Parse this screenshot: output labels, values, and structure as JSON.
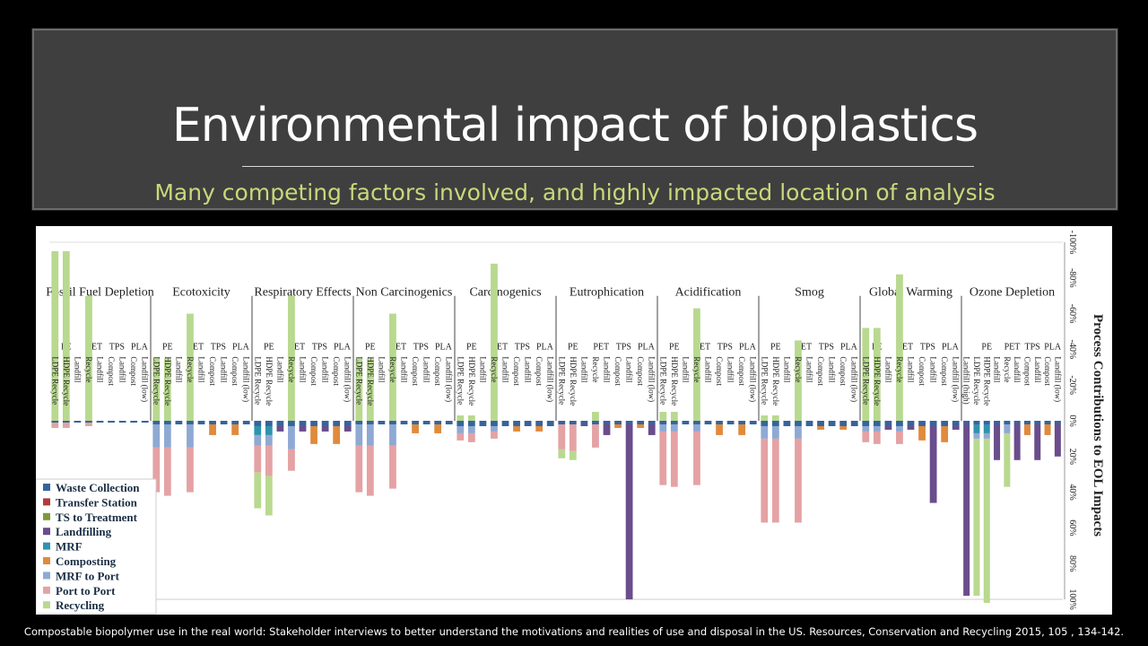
{
  "slide": {
    "title": "Environmental impact of  bioplastics",
    "subtitle": "Many competing factors involved, and highly impacted location of analysis",
    "citation": "Compostable biopolymer use in the real world: Stakeholder interviews to better understand the motivations and realities of use and disposal in the US. Resources, Conservation and Recycling 2015, 105 , 134-142."
  },
  "colors": {
    "Waste Collection": "#36649a",
    "Transfer Station": "#b23a3a",
    "TS to Treatment": "#7d9a3b",
    "Landfilling": "#6a4d8c",
    "MRF": "#2f93ad",
    "Composting": "#e08a3c",
    "MRF to Port": "#8ea9d3",
    "Port to Port": "#e4a2a4",
    "Recycling": "#b8d98f"
  },
  "chart_data": {
    "type": "bar",
    "stacked": true,
    "orientation": "vertical",
    "ylabel": "Process Contributions to EOL Impacts",
    "ylim": [
      -100,
      100
    ],
    "yticks": [
      "-100%",
      "-80%",
      "-60%",
      "-40%",
      "-20%",
      "0%",
      "20%",
      "40%",
      "60%",
      "80%",
      "100%"
    ],
    "legend": [
      "Waste Collection",
      "Transfer Station",
      "TS to Treatment",
      "Landfilling",
      "MRF",
      "Composting",
      "MRF to Port",
      "Port to Port",
      "Recycling"
    ],
    "legend_position": "bottom-left",
    "material_labels": [
      "PE",
      "PET",
      "TPS",
      "PLA"
    ],
    "categories_template": [
      {
        "label": "LDPE Recycle",
        "material": "PE"
      },
      {
        "label": "HDPE Recycle",
        "material": "PE"
      },
      {
        "label": "Landfill",
        "material": "PE"
      },
      {
        "label": "Recycle",
        "material": "PET"
      },
      {
        "label": "Landfill",
        "material": "PET"
      },
      {
        "label": "Compost",
        "material": "TPS"
      },
      {
        "label": "Landfill",
        "material": "TPS"
      },
      {
        "label": "Compost",
        "material": "PLA"
      },
      {
        "label": "Landfill (low)",
        "material": "PLA"
      }
    ],
    "groups": [
      {
        "name": "Fossil Fuel Depletion",
        "bars": [
          {
            "Recycling": -95,
            "Port to Port": 3,
            "Waste Collection": 1
          },
          {
            "Recycling": -95,
            "Port to Port": 3,
            "Waste Collection": 1
          },
          {
            "Waste Collection": 1
          },
          {
            "Recycling": -70,
            "Port to Port": 2,
            "Waste Collection": 1
          },
          {
            "Waste Collection": 1
          },
          {
            "Waste Collection": 1
          },
          {
            "Waste Collection": 1
          },
          {
            "Waste Collection": 1
          },
          {
            "Waste Collection": 1
          }
        ]
      },
      {
        "name": "Ecotoxicity",
        "bars": [
          {
            "Waste Collection": 2,
            "MRF to Port": 13,
            "Port to Port": 25,
            "Recycling": -35
          },
          {
            "Waste Collection": 2,
            "MRF to Port": 13,
            "Port to Port": 27,
            "Recycling": -35
          },
          {
            "Waste Collection": 2
          },
          {
            "Waste Collection": 2,
            "MRF to Port": 13,
            "Port to Port": 25,
            "Recycling": -60
          },
          {
            "Waste Collection": 2
          },
          {
            "Waste Collection": 2,
            "Composting": 6
          },
          {
            "Waste Collection": 2
          },
          {
            "Waste Collection": 2,
            "Composting": 6
          },
          {
            "Waste Collection": 2
          }
        ]
      },
      {
        "name": "Respiratory Effects",
        "bars": [
          {
            "Waste Collection": 3,
            "MRF": 5,
            "MRF to Port": 6,
            "Port to Port": 15,
            "Recycling": 20
          },
          {
            "Waste Collection": 3,
            "MRF": 5,
            "MRF to Port": 6,
            "Port to Port": 17,
            "Recycling": 22
          },
          {
            "Waste Collection": 3,
            "Landfilling": 3
          },
          {
            "Waste Collection": 3,
            "MRF to Port": 13,
            "Port to Port": 12,
            "Recycling": -70
          },
          {
            "Waste Collection": 3,
            "Landfilling": 3
          },
          {
            "Waste Collection": 3,
            "Composting": 10
          },
          {
            "Waste Collection": 3,
            "Landfilling": 3
          },
          {
            "Waste Collection": 3,
            "Composting": 10
          },
          {
            "Waste Collection": 3,
            "Landfilling": 3
          }
        ]
      },
      {
        "name": "Non Carcinogenics",
        "bars": [
          {
            "Waste Collection": 2,
            "MRF to Port": 12,
            "Port to Port": 26,
            "Recycling": -35
          },
          {
            "Waste Collection": 2,
            "MRF to Port": 12,
            "Port to Port": 28,
            "Recycling": -35
          },
          {
            "Waste Collection": 2
          },
          {
            "Waste Collection": 2,
            "MRF to Port": 12,
            "Port to Port": 24,
            "Recycling": -60
          },
          {
            "Waste Collection": 2
          },
          {
            "Waste Collection": 2,
            "Composting": 5
          },
          {
            "Waste Collection": 2
          },
          {
            "Waste Collection": 2,
            "Composting": 5
          },
          {
            "Waste Collection": 2
          }
        ]
      },
      {
        "name": "Carcinogenics",
        "bars": [
          {
            "Waste Collection": 3,
            "MRF to Port": 4,
            "Port to Port": 4,
            "Recycling": -3
          },
          {
            "Waste Collection": 3,
            "MRF to Port": 4,
            "Port to Port": 5,
            "Recycling": -3
          },
          {
            "Waste Collection": 3
          },
          {
            "Waste Collection": 3,
            "MRF to Port": 3,
            "Port to Port": 4,
            "Recycling": -88
          },
          {
            "Waste Collection": 3
          },
          {
            "Waste Collection": 3,
            "Composting": 3
          },
          {
            "Waste Collection": 3
          },
          {
            "Waste Collection": 3,
            "Composting": 3
          },
          {
            "Waste Collection": 3
          }
        ]
      },
      {
        "name": "Eutrophication",
        "bars": [
          {
            "Waste Collection": 2,
            "Port to Port": 14,
            "Recycling": 5
          },
          {
            "Waste Collection": 2,
            "Port to Port": 15,
            "Recycling": 5
          },
          {
            "Waste Collection": 2,
            "Landfilling": 1
          },
          {
            "Waste Collection": 2,
            "Port to Port": 13,
            "Recycling": -5
          },
          {
            "Waste Collection": 2,
            "Landfilling": 6
          },
          {
            "Waste Collection": 2,
            "Composting": 2
          },
          {
            "Waste Collection": 2,
            "Landfilling": 98
          },
          {
            "Waste Collection": 2,
            "Composting": 2
          },
          {
            "Waste Collection": 2,
            "Landfilling": 6
          }
        ]
      },
      {
        "name": "Acidification",
        "bars": [
          {
            "Waste Collection": 2,
            "MRF to Port": 4,
            "Port to Port": 30,
            "Recycling": -5
          },
          {
            "Waste Collection": 2,
            "MRF to Port": 4,
            "Port to Port": 31,
            "Recycling": -5
          },
          {
            "Waste Collection": 2
          },
          {
            "Waste Collection": 2,
            "MRF to Port": 4,
            "Port to Port": 30,
            "Recycling": -63
          },
          {
            "Waste Collection": 2
          },
          {
            "Waste Collection": 2,
            "Composting": 6
          },
          {
            "Waste Collection": 2
          },
          {
            "Waste Collection": 2,
            "Composting": 6
          },
          {
            "Waste Collection": 2
          }
        ]
      },
      {
        "name": "Smog",
        "bars": [
          {
            "Waste Collection": 3,
            "MRF to Port": 7,
            "Port to Port": 47,
            "Recycling": -3
          },
          {
            "Waste Collection": 3,
            "MRF to Port": 7,
            "Port to Port": 47,
            "Recycling": -3
          },
          {
            "Waste Collection": 3
          },
          {
            "Waste Collection": 3,
            "MRF to Port": 7,
            "Port to Port": 47,
            "Recycling": -45
          },
          {
            "Waste Collection": 3
          },
          {
            "Waste Collection": 3,
            "Composting": 2
          },
          {
            "Waste Collection": 3
          },
          {
            "Waste Collection": 3,
            "Composting": 2
          },
          {
            "Waste Collection": 3
          }
        ]
      },
      {
        "name": "Global Warming",
        "bars": [
          {
            "Waste Collection": 3,
            "MRF to Port": 3,
            "Port to Port": 6,
            "Recycling": -52
          },
          {
            "Waste Collection": 3,
            "MRF to Port": 3,
            "Port to Port": 7,
            "Recycling": -52
          },
          {
            "Waste Collection": 3,
            "Landfilling": 2
          },
          {
            "Waste Collection": 3,
            "MRF to Port": 3,
            "Port to Port": 7,
            "Recycling": -82
          },
          {
            "Waste Collection": 3,
            "Landfilling": 2
          },
          {
            "Waste Collection": 3,
            "Composting": 8
          },
          {
            "Waste Collection": 3,
            "Landfilling": 43
          },
          {
            "Waste Collection": 3,
            "Composting": 9
          },
          {
            "Waste Collection": 3,
            "Landfilling": 2
          }
        ]
      },
      {
        "name": "Ozone Depletion",
        "extra_label": "Landfill (high)",
        "bars": [
          {
            "Waste Collection": 2,
            "Landfilling": 96
          },
          {
            "Waste Collection": 2,
            "MRF": 5,
            "MRF to Port": 3,
            "Recycling": 88
          },
          {
            "Waste Collection": 2,
            "MRF": 5,
            "MRF to Port": 3,
            "Recycling": 92
          },
          {
            "Waste Collection": 2,
            "Landfilling": 20
          },
          {
            "Waste Collection": 2,
            "MRF to Port": 5,
            "Recycling": 30
          },
          {
            "Waste Collection": 2,
            "Landfilling": 20
          },
          {
            "Waste Collection": 2,
            "Composting": 6
          },
          {
            "Waste Collection": 2,
            "Landfilling": 20
          },
          {
            "Waste Collection": 2,
            "Composting": 6
          },
          {
            "Waste Collection": 2,
            "Landfilling": 18
          }
        ]
      }
    ]
  }
}
